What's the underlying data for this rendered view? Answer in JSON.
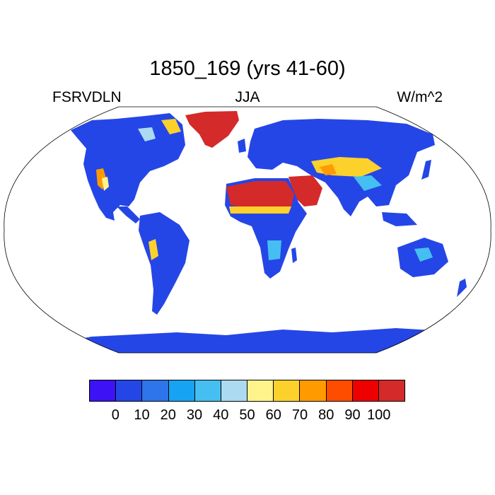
{
  "title": "1850_169 (yrs 41-60)",
  "subtitle_left": "FSRVDLN",
  "subtitle_center": "JJA",
  "subtitle_right": "W/m^2",
  "colorbar": {
    "colors": [
      "#3d12f5",
      "#2546e6",
      "#2e74ea",
      "#17a3f3",
      "#45bff1",
      "#acdaf1",
      "#fff48c",
      "#fdd12c",
      "#ff9b00",
      "#ff4d00",
      "#ec0000",
      "#d42a2a"
    ],
    "labels": [
      "0",
      "10",
      "20",
      "30",
      "40",
      "50",
      "60",
      "70",
      "80",
      "90",
      "100"
    ]
  }
}
